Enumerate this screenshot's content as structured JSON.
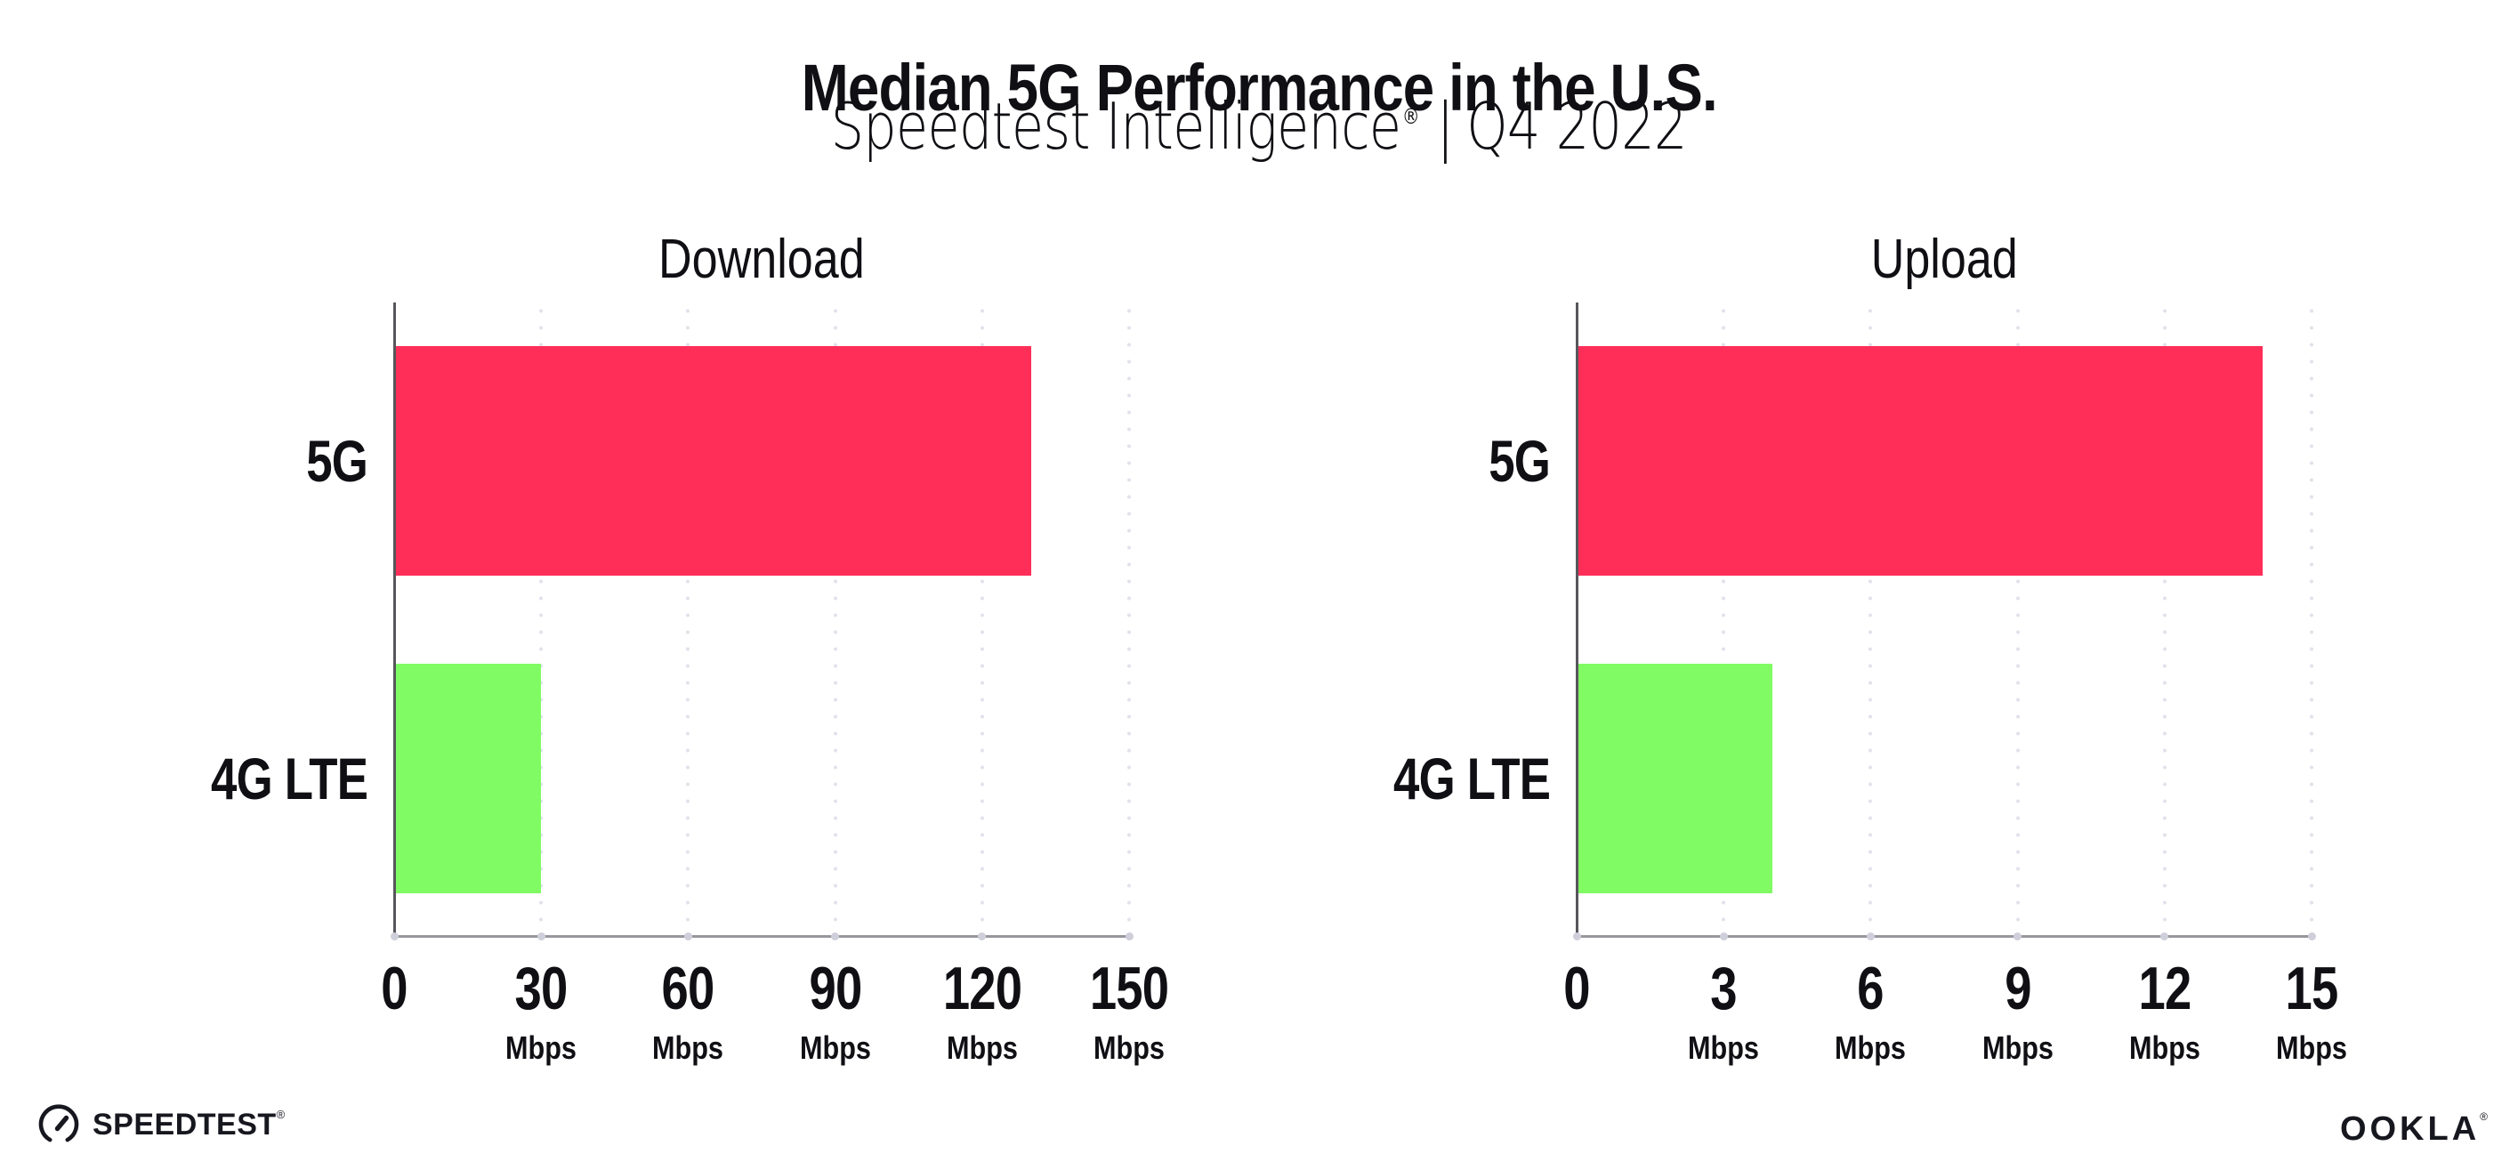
{
  "header": {
    "title": "Median 5G Performance in the U.S.",
    "subtitle_brand": "Speedtest Intelligence",
    "subtitle_reg": "®",
    "subtitle_separator": "|",
    "subtitle_period": "Q4 2022"
  },
  "chart_data": [
    {
      "type": "bar",
      "orientation": "horizontal",
      "title": "Download",
      "categories": [
        "5G",
        "4G LTE"
      ],
      "values": [
        130,
        30
      ],
      "unit": "Mbps",
      "xlim": [
        0,
        150
      ],
      "ticks": [
        0,
        30,
        60,
        90,
        120,
        150
      ],
      "bar_colors": [
        "#FF2E59",
        "#80FB64"
      ],
      "grid": "dotted-vertical",
      "legend": "none"
    },
    {
      "type": "bar",
      "orientation": "horizontal",
      "title": "Upload",
      "categories": [
        "5G",
        "4G LTE"
      ],
      "values": [
        14,
        4
      ],
      "unit": "Mbps",
      "xlim": [
        0,
        15
      ],
      "ticks": [
        0,
        3,
        6,
        9,
        12,
        15
      ],
      "bar_colors": [
        "#FF2E59",
        "#80FB64"
      ],
      "grid": "dotted-vertical",
      "legend": "none"
    }
  ],
  "footer": {
    "speedtest_label": "SPEEDTEST",
    "speedtest_reg": "®",
    "ookla_label": "OOKLA",
    "ookla_reg": "®"
  },
  "colors": {
    "bar_5g": "#FF2E59",
    "bar_4g_lte": "#80FB64",
    "x_axis": "#97979D",
    "y_axis": "#56565C",
    "grid_dot": "#E2E2EC",
    "axis_dot": "#CFCFDB",
    "text": "#0F0F14",
    "background": "#FFFFFF"
  }
}
